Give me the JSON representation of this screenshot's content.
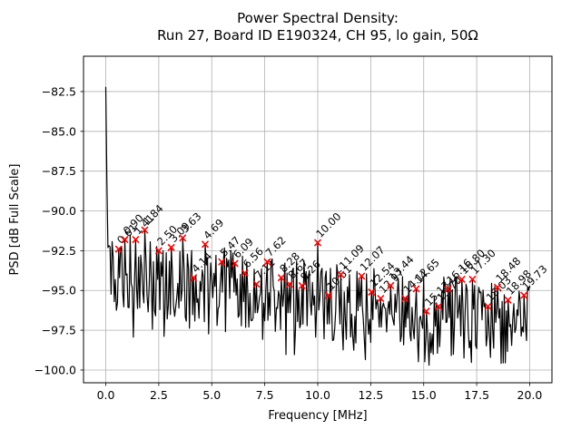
{
  "figure": {
    "background": "#ffffff",
    "title_line1": "Power Spectral Density:",
    "title_line2": "Run 27, Board ID E190324, CH 95, lo gain, 50Ω"
  },
  "chart_data": {
    "type": "line",
    "title": "Power Spectral Density:\nRun 27, Board ID E190324, CH 95, lo gain, 50Ω",
    "xlabel": "Frequency [MHz]",
    "ylabel": "PSD [dB Full Scale]",
    "xlim": [
      -1.05,
      21.05
    ],
    "ylim": [
      -100.8,
      -80.28
    ],
    "x_ticks": [
      0,
      2.5,
      5,
      7.5,
      10,
      12.5,
      15,
      17.5,
      20
    ],
    "x_tick_labels": [
      "0.0",
      "2.5",
      "5.0",
      "7.5",
      "10.0",
      "12.5",
      "15.0",
      "17.5",
      "20.0"
    ],
    "y_ticks": [
      -82.5,
      -85.0,
      -87.5,
      -90.0,
      -92.5,
      -95.0,
      -97.5,
      -100.0
    ],
    "y_tick_labels": [
      "−82.5",
      "−85.0",
      "−87.5",
      "−90.0",
      "−92.5",
      "−95.0",
      "−97.5",
      "−100.0"
    ],
    "grid": true,
    "grid_color": "#b0b0b0",
    "line_color": "#000000",
    "marker": {
      "style": "x",
      "color": "#ff0000"
    },
    "dc_spike": {
      "freq": 0.0,
      "psd_db": -82.2
    },
    "noise_floor": {
      "start_db": -93.2,
      "slope_db_per_mhz": -0.17,
      "jitter_db": 2.6,
      "min_db": -99.9
    },
    "peaks": [
      {
        "freq": 0.61,
        "psd_db": -92.4,
        "label": "0.61"
      },
      {
        "freq": 0.9,
        "psd_db": -91.8,
        "label": "0.90"
      },
      {
        "freq": 1.41,
        "psd_db": -91.8,
        "label": "1.41"
      },
      {
        "freq": 1.84,
        "psd_db": -91.2,
        "label": "1.84"
      },
      {
        "freq": 2.5,
        "psd_db": -92.5,
        "label": "2.50"
      },
      {
        "freq": 3.09,
        "psd_db": -92.3,
        "label": "3.09"
      },
      {
        "freq": 3.63,
        "psd_db": -91.7,
        "label": "3.63"
      },
      {
        "freq": 4.14,
        "psd_db": -94.2,
        "label": "4.14"
      },
      {
        "freq": 4.69,
        "psd_db": -92.1,
        "label": "4.69"
      },
      {
        "freq": 5.47,
        "psd_db": -93.2,
        "label": "5.47"
      },
      {
        "freq": 6.09,
        "psd_db": -93.3,
        "label": "6.09"
      },
      {
        "freq": 6.56,
        "psd_db": -93.9,
        "label": "6.56"
      },
      {
        "freq": 7.11,
        "psd_db": -94.6,
        "label": "7.11"
      },
      {
        "freq": 7.62,
        "psd_db": -93.2,
        "label": "7.62"
      },
      {
        "freq": 8.28,
        "psd_db": -94.2,
        "label": "8.28"
      },
      {
        "freq": 8.67,
        "psd_db": -94.6,
        "label": "8.67"
      },
      {
        "freq": 9.26,
        "psd_db": -94.7,
        "label": "9.26"
      },
      {
        "freq": 10.0,
        "psd_db": -92.0,
        "label": "10.00"
      },
      {
        "freq": 10.51,
        "psd_db": -95.3,
        "label": "10.51"
      },
      {
        "freq": 11.09,
        "psd_db": -94.0,
        "label": "11.09"
      },
      {
        "freq": 12.07,
        "psd_db": -94.1,
        "label": "12.07"
      },
      {
        "freq": 12.54,
        "psd_db": -95.1,
        "label": "12.54"
      },
      {
        "freq": 12.97,
        "psd_db": -95.5,
        "label": "12.97"
      },
      {
        "freq": 13.44,
        "psd_db": -94.7,
        "label": "13.44"
      },
      {
        "freq": 14.12,
        "psd_db": -95.5,
        "label": "14.12"
      },
      {
        "freq": 14.65,
        "psd_db": -94.9,
        "label": "14.65"
      },
      {
        "freq": 15.13,
        "psd_db": -96.3,
        "label": "15.13"
      },
      {
        "freq": 15.7,
        "psd_db": -96.0,
        "label": "15.70"
      },
      {
        "freq": 16.16,
        "psd_db": -94.9,
        "label": "16.16"
      },
      {
        "freq": 16.8,
        "psd_db": -94.3,
        "label": "16.80"
      },
      {
        "freq": 17.3,
        "psd_db": -94.3,
        "label": "17.30"
      },
      {
        "freq": 18.03,
        "psd_db": -96.0,
        "label": "18.03"
      },
      {
        "freq": 18.48,
        "psd_db": -94.8,
        "label": "18.48"
      },
      {
        "freq": 18.98,
        "psd_db": -95.6,
        "label": "18.98"
      },
      {
        "freq": 19.73,
        "psd_db": -95.3,
        "label": "19.73"
      }
    ]
  }
}
